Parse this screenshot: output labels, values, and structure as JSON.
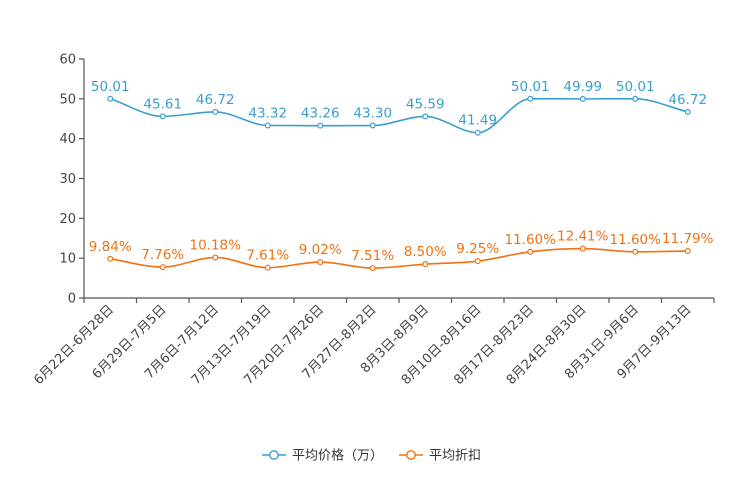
{
  "chart_data": {
    "type": "line",
    "title": "",
    "xlabel": "",
    "ylabel": "",
    "ylim": [
      0,
      60
    ],
    "yticks": [
      0,
      10,
      20,
      30,
      40,
      50,
      60
    ],
    "grid": false,
    "legend_position": "bottom-center",
    "categories": [
      "6月22日-6月28日",
      "6月29日-7月5日",
      "7月6日-7月12日",
      "7月13日-7月19日",
      "7月20日-7月26日",
      "7月27日-8月2日",
      "8月3日-8月9日",
      "8月10日-8月16日",
      "8月17日-8月23日",
      "8月24日-8月30日",
      "8月31日-9月6日",
      "9月7日-9月13日"
    ],
    "series": [
      {
        "name": "平均价格（万）",
        "color": "#3a9fd0",
        "values": [
          50.01,
          45.61,
          46.72,
          43.32,
          43.26,
          43.3,
          45.59,
          41.49,
          50.01,
          49.99,
          50.01,
          46.72
        ],
        "labels": [
          "50.01",
          "45.61",
          "46.72",
          "43.32",
          "43.26",
          "43.30",
          "45.59",
          "41.49",
          "50.01",
          "49.99",
          "50.01",
          "46.72"
        ]
      },
      {
        "name": "平均折扣",
        "color": "#f07214",
        "values": [
          9.84,
          7.76,
          10.18,
          7.61,
          9.02,
          7.51,
          8.5,
          9.25,
          11.6,
          12.41,
          11.6,
          11.79
        ],
        "labels": [
          "9.84%",
          "7.76%",
          "10.18%",
          "7.61%",
          "9.02%",
          "7.51%",
          "8.50%",
          "9.25%",
          "11.60%",
          "12.41%",
          "11.60%",
          "11.79%"
        ]
      }
    ]
  }
}
